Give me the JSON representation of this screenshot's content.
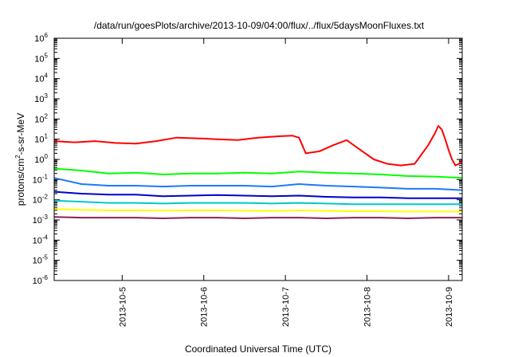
{
  "chart_data": {
    "type": "line",
    "title": "/data/run/goesPlots/archive/2013-10-09/04:00/flux/../flux/5daysMoonFluxes.txt",
    "xlabel": "Coordinated Universal Time (UTC)",
    "ylabel": {
      "prefix": "protons/cm",
      "sup": "2",
      "suffix": "-s-sr-MeV"
    },
    "y_scale": "log",
    "ylim": [
      1e-06,
      1000000.0
    ],
    "y_ticks": [
      {
        "value": 1e-06,
        "base": "10",
        "exp": "-6"
      },
      {
        "value": 1e-05,
        "base": "10",
        "exp": "-5"
      },
      {
        "value": 0.0001,
        "base": "10",
        "exp": "-4"
      },
      {
        "value": 0.001,
        "base": "10",
        "exp": "-3"
      },
      {
        "value": 0.01,
        "base": "10",
        "exp": "-2"
      },
      {
        "value": 0.1,
        "base": "10",
        "exp": "-1"
      },
      {
        "value": 1,
        "base": "10",
        "exp": "0"
      },
      {
        "value": 10,
        "base": "10",
        "exp": "1"
      },
      {
        "value": 100,
        "base": "10",
        "exp": "2"
      },
      {
        "value": 1000,
        "base": "10",
        "exp": "3"
      },
      {
        "value": 10000,
        "base": "10",
        "exp": "4"
      },
      {
        "value": 100000,
        "base": "10",
        "exp": "5"
      },
      {
        "value": 1000000,
        "base": "10",
        "exp": "6"
      }
    ],
    "xlim": [
      "2013-10-04T04:00",
      "2013-10-09T04:00"
    ],
    "x_ticks": [
      "2013-10-5",
      "2013-10-6",
      "2013-10-7",
      "2013-10-8",
      "2013-10-9"
    ],
    "x_tick_times": [
      "2013-10-05T00:00",
      "2013-10-06T00:00",
      "2013-10-07T00:00",
      "2013-10-08T00:00",
      "2013-10-09T00:00"
    ],
    "grid": false,
    "legend": "none",
    "series": [
      {
        "color": "#ff0000",
        "x": [
          "2013-10-04T04:00",
          "2013-10-04T10:00",
          "2013-10-04T16:00",
          "2013-10-04T22:00",
          "2013-10-05T04:00",
          "2013-10-05T10:00",
          "2013-10-05T16:00",
          "2013-10-05T22:00",
          "2013-10-06T04:00",
          "2013-10-06T10:00",
          "2013-10-06T16:00",
          "2013-10-06T22:00",
          "2013-10-07T02:00",
          "2013-10-07T04:00",
          "2013-10-07T06:00",
          "2013-10-07T10:00",
          "2013-10-07T14:00",
          "2013-10-07T18:00",
          "2013-10-07T22:00",
          "2013-10-08T02:00",
          "2013-10-08T06:00",
          "2013-10-08T10:00",
          "2013-10-08T14:00",
          "2013-10-08T18:00",
          "2013-10-08T20:00",
          "2013-10-08T21:00",
          "2013-10-08T22:00",
          "2013-10-08T23:00",
          "2013-10-09T00:00",
          "2013-10-09T01:00",
          "2013-10-09T02:00",
          "2013-10-09T03:00",
          "2013-10-09T04:00"
        ],
        "y": [
          8,
          7,
          8,
          6.5,
          6,
          8,
          12,
          11,
          10,
          9,
          12,
          14,
          15,
          12,
          2,
          2.5,
          5,
          9,
          3,
          1,
          0.6,
          0.5,
          0.6,
          5,
          20,
          45,
          30,
          10,
          3,
          1,
          0.5,
          0.6,
          0.8
        ]
      },
      {
        "color": "#00ff00",
        "x": [
          "2013-10-04T04:00",
          "2013-10-04T12:00",
          "2013-10-04T20:00",
          "2013-10-05T04:00",
          "2013-10-05T12:00",
          "2013-10-05T20:00",
          "2013-10-06T04:00",
          "2013-10-06T12:00",
          "2013-10-06T20:00",
          "2013-10-07T04:00",
          "2013-10-07T12:00",
          "2013-10-07T20:00",
          "2013-10-08T04:00",
          "2013-10-08T12:00",
          "2013-10-08T20:00",
          "2013-10-09T04:00"
        ],
        "y": [
          0.35,
          0.28,
          0.2,
          0.22,
          0.18,
          0.2,
          0.2,
          0.22,
          0.2,
          0.25,
          0.22,
          0.2,
          0.18,
          0.15,
          0.14,
          0.12
        ]
      },
      {
        "color": "#1e78ff",
        "x": [
          "2013-10-04T04:00",
          "2013-10-04T12:00",
          "2013-10-04T20:00",
          "2013-10-05T04:00",
          "2013-10-05T12:00",
          "2013-10-05T20:00",
          "2013-10-06T04:00",
          "2013-10-06T12:00",
          "2013-10-06T20:00",
          "2013-10-07T04:00",
          "2013-10-07T12:00",
          "2013-10-07T20:00",
          "2013-10-08T04:00",
          "2013-10-08T12:00",
          "2013-10-08T20:00",
          "2013-10-09T04:00"
        ],
        "y": [
          0.12,
          0.06,
          0.05,
          0.05,
          0.045,
          0.05,
          0.05,
          0.05,
          0.045,
          0.06,
          0.05,
          0.045,
          0.04,
          0.035,
          0.035,
          0.03
        ]
      },
      {
        "color": "#0000cd",
        "x": [
          "2013-10-04T04:00",
          "2013-10-04T12:00",
          "2013-10-04T20:00",
          "2013-10-05T04:00",
          "2013-10-05T12:00",
          "2013-10-05T20:00",
          "2013-10-06T04:00",
          "2013-10-06T12:00",
          "2013-10-06T20:00",
          "2013-10-07T04:00",
          "2013-10-07T12:00",
          "2013-10-07T20:00",
          "2013-10-08T04:00",
          "2013-10-08T12:00",
          "2013-10-08T20:00",
          "2013-10-09T04:00"
        ],
        "y": [
          0.025,
          0.02,
          0.018,
          0.018,
          0.015,
          0.016,
          0.017,
          0.016,
          0.015,
          0.016,
          0.014,
          0.013,
          0.013,
          0.012,
          0.012,
          0.012
        ]
      },
      {
        "color": "#00c8c8",
        "x": [
          "2013-10-04T04:00",
          "2013-10-04T12:00",
          "2013-10-04T20:00",
          "2013-10-05T04:00",
          "2013-10-05T12:00",
          "2013-10-05T20:00",
          "2013-10-06T04:00",
          "2013-10-06T12:00",
          "2013-10-06T20:00",
          "2013-10-07T04:00",
          "2013-10-07T12:00",
          "2013-10-07T20:00",
          "2013-10-08T04:00",
          "2013-10-08T12:00",
          "2013-10-08T20:00",
          "2013-10-09T04:00"
        ],
        "y": [
          0.009,
          0.008,
          0.007,
          0.007,
          0.0065,
          0.007,
          0.007,
          0.007,
          0.0065,
          0.007,
          0.0065,
          0.006,
          0.006,
          0.006,
          0.006,
          0.006
        ]
      },
      {
        "color": "#ffff00",
        "x": [
          "2013-10-04T04:00",
          "2013-10-04T12:00",
          "2013-10-04T20:00",
          "2013-10-05T04:00",
          "2013-10-05T12:00",
          "2013-10-05T20:00",
          "2013-10-06T04:00",
          "2013-10-06T12:00",
          "2013-10-06T20:00",
          "2013-10-07T04:00",
          "2013-10-07T12:00",
          "2013-10-07T20:00",
          "2013-10-08T04:00",
          "2013-10-08T12:00",
          "2013-10-08T20:00",
          "2013-10-09T04:00"
        ],
        "y": [
          0.0035,
          0.0032,
          0.003,
          0.003,
          0.0029,
          0.003,
          0.003,
          0.0029,
          0.0028,
          0.003,
          0.0028,
          0.0027,
          0.0027,
          0.0026,
          0.0026,
          0.0026
        ]
      },
      {
        "color": "#8b2252",
        "x": [
          "2013-10-04T04:00",
          "2013-10-04T12:00",
          "2013-10-04T20:00",
          "2013-10-05T04:00",
          "2013-10-05T12:00",
          "2013-10-05T20:00",
          "2013-10-06T04:00",
          "2013-10-06T12:00",
          "2013-10-06T20:00",
          "2013-10-07T04:00",
          "2013-10-07T12:00",
          "2013-10-07T20:00",
          "2013-10-08T04:00",
          "2013-10-08T12:00",
          "2013-10-08T20:00",
          "2013-10-09T04:00"
        ],
        "y": [
          0.0014,
          0.0013,
          0.0013,
          0.0013,
          0.0012,
          0.0013,
          0.0013,
          0.0012,
          0.0013,
          0.0013,
          0.0012,
          0.0013,
          0.0013,
          0.0012,
          0.0013,
          0.0013
        ]
      }
    ]
  }
}
